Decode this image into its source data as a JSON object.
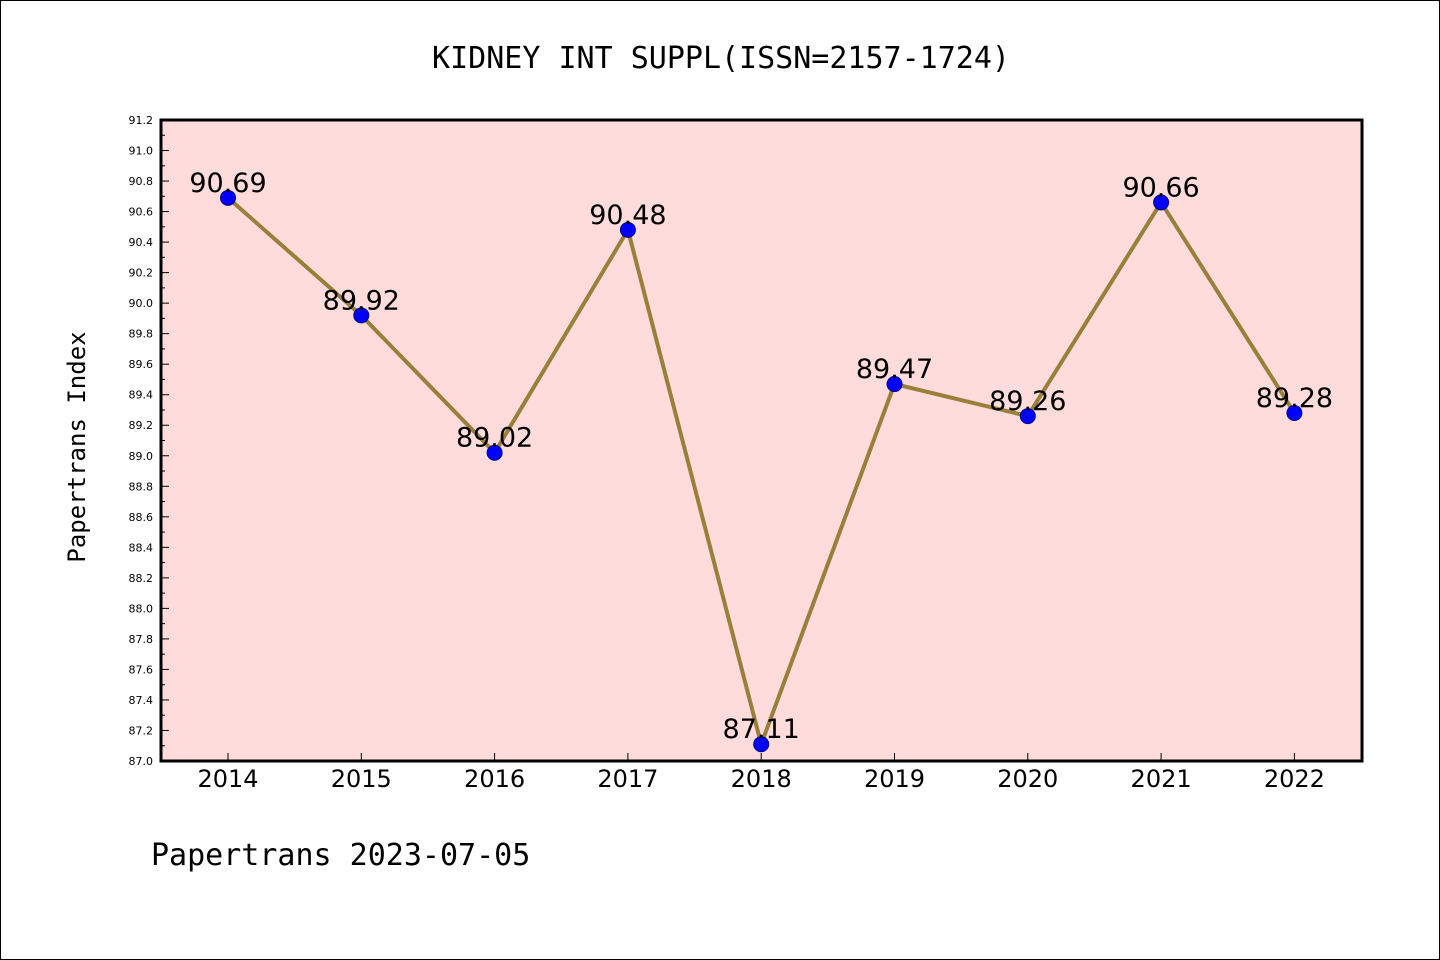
{
  "chart_data": {
    "type": "line",
    "title": "KIDNEY INT SUPPL(ISSN=2157-1724)",
    "ylabel": "Papertrans Index",
    "xlabel": "",
    "categories": [
      "2014",
      "2015",
      "2016",
      "2017",
      "2018",
      "2019",
      "2020",
      "2021",
      "2022"
    ],
    "values": [
      90.69,
      89.92,
      89.02,
      90.48,
      87.11,
      89.47,
      89.26,
      90.66,
      89.28
    ],
    "data_labels": [
      "90.69",
      "89.92",
      "89.02",
      "90.48",
      "87.11",
      "89.47",
      "89.26",
      "90.66",
      "89.28"
    ],
    "ylim": [
      87.0,
      91.2
    ],
    "yticks": [
      "87.0",
      "87.2",
      "87.4",
      "87.6",
      "87.8",
      "88.0",
      "88.2",
      "88.4",
      "88.6",
      "88.8",
      "89.0",
      "89.2",
      "89.4",
      "89.6",
      "89.8",
      "90.0",
      "90.2",
      "90.4",
      "90.6",
      "90.8",
      "91.0",
      "91.2"
    ],
    "grid": false,
    "colors": {
      "plot_background": "#ffdcdc",
      "line": "#9a7f3a",
      "marker": "#0000ff"
    }
  },
  "footer": "Papertrans 2023-07-05"
}
